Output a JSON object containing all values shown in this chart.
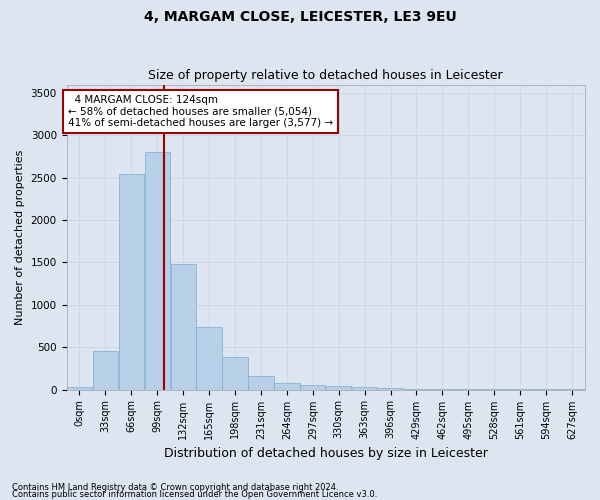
{
  "title": "4, MARGAM CLOSE, LEICESTER, LE3 9EU",
  "subtitle": "Size of property relative to detached houses in Leicester",
  "xlabel": "Distribution of detached houses by size in Leicester",
  "ylabel": "Number of detached properties",
  "property_label": "4 MARGAM CLOSE: 124sqm",
  "pct_smaller": "58% of detached houses are smaller (5,054)",
  "pct_larger": "41% of semi-detached houses are larger (3,577)",
  "bin_width": 33,
  "bin_starts": [
    0,
    33,
    66,
    99,
    132,
    165,
    198,
    231,
    264,
    297,
    330,
    363,
    396,
    429,
    462,
    495,
    528,
    561,
    594,
    627
  ],
  "bar_heights": [
    30,
    460,
    2550,
    2800,
    1480,
    740,
    380,
    155,
    80,
    55,
    40,
    30,
    20,
    10,
    5,
    5,
    5,
    3,
    2,
    1
  ],
  "bar_color": "#b8cfe8",
  "bar_edge_color": "#7aacd4",
  "vline_color": "#990000",
  "vline_x": 124,
  "annotation_box_color": "#990000",
  "ylim": [
    0,
    3600
  ],
  "yticks": [
    0,
    500,
    1000,
    1500,
    2000,
    2500,
    3000,
    3500
  ],
  "grid_color": "#ccd5e8",
  "background_color": "#dde5f0",
  "plot_bg_color": "#dde5f0",
  "footnote1": "Contains HM Land Registry data © Crown copyright and database right 2024.",
  "footnote2": "Contains public sector information licensed under the Open Government Licence v3.0.",
  "title_fontsize": 10,
  "subtitle_fontsize": 9,
  "ylabel_fontsize": 8,
  "xlabel_fontsize": 9,
  "tick_label_fontsize": 7,
  "annotation_fontsize": 7.5
}
